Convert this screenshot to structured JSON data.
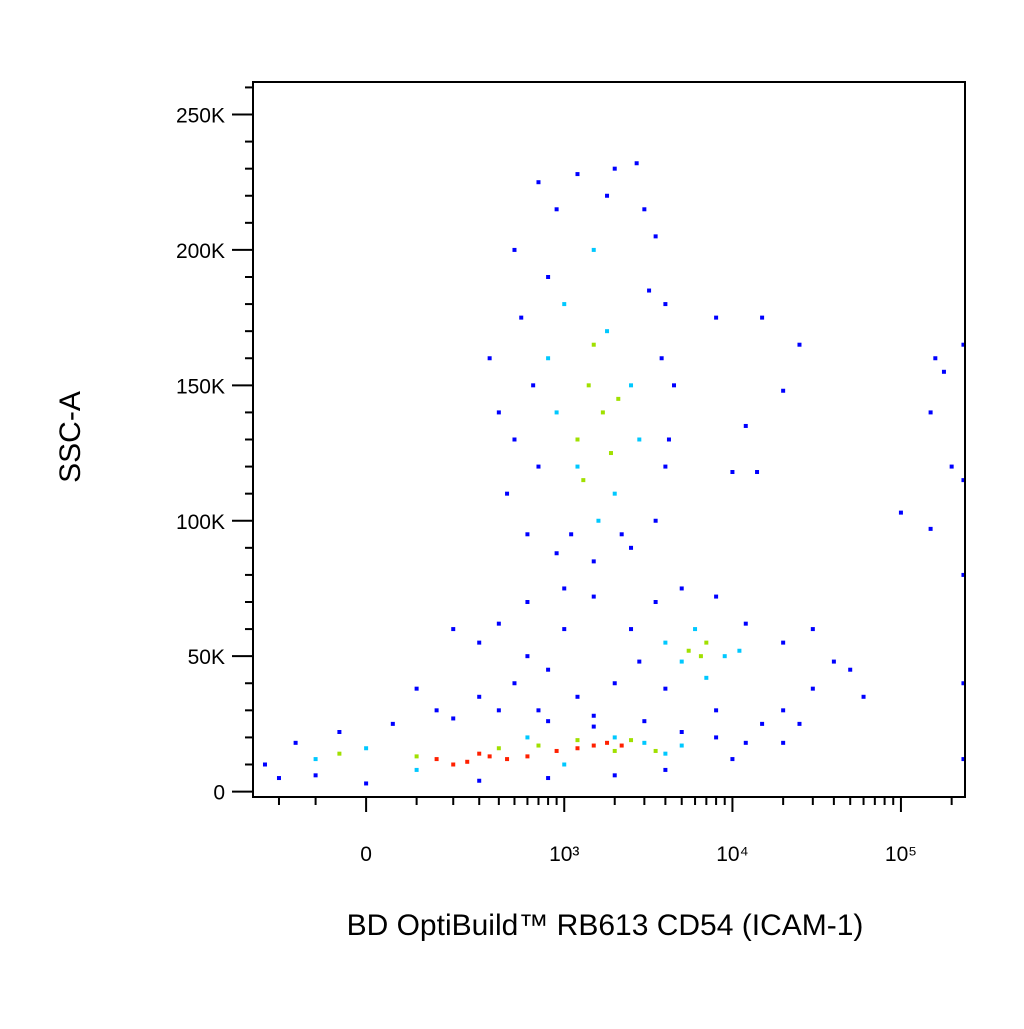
{
  "chart_data": {
    "type": "scatter",
    "xlabel": "BD OptiBuild™ RB613 CD54 (ICAM-1)",
    "ylabel": "SSC-A",
    "xscale": "biexponential",
    "xlim": [
      -300,
      240000
    ],
    "ylim": [
      -2000,
      262000
    ],
    "xticks": [
      0,
      {
        "value": 1000,
        "label": "10³"
      },
      {
        "value": 10000,
        "label": "10⁴"
      },
      {
        "value": 100000,
        "label": "10⁵"
      }
    ],
    "xminorticks": [
      -200,
      -100,
      100,
      200,
      300,
      400,
      500,
      600,
      700,
      800,
      900,
      2000,
      3000,
      4000,
      5000,
      6000,
      7000,
      8000,
      9000,
      20000,
      30000,
      40000,
      50000,
      60000,
      70000,
      80000,
      90000,
      200000
    ],
    "yticks": [
      0,
      {
        "value": 50000,
        "label": "50K"
      },
      {
        "value": 100000,
        "label": "100K"
      },
      {
        "value": 150000,
        "label": "150K"
      },
      {
        "value": 200000,
        "label": "200K"
      },
      {
        "value": 250000,
        "label": "250K"
      }
    ],
    "yminorticks": [
      10000,
      20000,
      30000,
      40000,
      60000,
      70000,
      80000,
      90000,
      110000,
      120000,
      130000,
      140000,
      160000,
      170000,
      180000,
      190000,
      210000,
      220000,
      230000,
      240000,
      260000
    ],
    "series": [
      {
        "color": "#0000ff",
        "points": [
          [
            500,
            200000
          ],
          [
            700,
            225000
          ],
          [
            900,
            215000
          ],
          [
            1200,
            228000
          ],
          [
            2000,
            230000
          ],
          [
            2700,
            232000
          ],
          [
            3500,
            205000
          ],
          [
            4000,
            180000
          ],
          [
            4500,
            150000
          ],
          [
            4000,
            120000
          ],
          [
            3500,
            100000
          ],
          [
            2500,
            90000
          ],
          [
            1500,
            85000
          ],
          [
            900,
            88000
          ],
          [
            600,
            95000
          ],
          [
            450,
            110000
          ],
          [
            400,
            140000
          ],
          [
            350,
            160000
          ],
          [
            550,
            175000
          ],
          [
            800,
            190000
          ],
          [
            1800,
            220000
          ],
          [
            3000,
            215000
          ],
          [
            3800,
            160000
          ],
          [
            4200,
            130000
          ],
          [
            2200,
            95000
          ],
          [
            1100,
            95000
          ],
          [
            700,
            120000
          ],
          [
            500,
            130000
          ],
          [
            650,
            150000
          ],
          [
            3200,
            185000
          ],
          [
            8000,
            175000
          ],
          [
            15000,
            175000
          ],
          [
            25000,
            165000
          ],
          [
            20000,
            148000
          ],
          [
            12000,
            135000
          ],
          [
            10000,
            118000
          ],
          [
            14000,
            118000
          ],
          [
            160000,
            160000
          ],
          [
            150000,
            140000
          ],
          [
            180000,
            155000
          ],
          [
            100000,
            103000
          ],
          [
            150000,
            97000
          ],
          [
            200000,
            120000
          ],
          [
            235000,
            165000
          ],
          [
            235000,
            115000
          ],
          [
            235000,
            80000
          ],
          [
            235000,
            40000
          ],
          [
            235000,
            12000
          ],
          [
            2500,
            60000
          ],
          [
            3500,
            70000
          ],
          [
            5000,
            75000
          ],
          [
            8000,
            72000
          ],
          [
            12000,
            62000
          ],
          [
            20000,
            55000
          ],
          [
            30000,
            60000
          ],
          [
            40000,
            48000
          ],
          [
            50000,
            45000
          ],
          [
            30000,
            38000
          ],
          [
            20000,
            30000
          ],
          [
            15000,
            25000
          ],
          [
            8000,
            30000
          ],
          [
            4000,
            38000
          ],
          [
            2800,
            48000
          ],
          [
            60000,
            35000
          ],
          [
            25000,
            25000
          ],
          [
            200,
            60000
          ],
          [
            300,
            55000
          ],
          [
            400,
            62000
          ],
          [
            600,
            50000
          ],
          [
            800,
            45000
          ],
          [
            1000,
            60000
          ],
          [
            500,
            40000
          ],
          [
            300,
            35000
          ],
          [
            150,
            30000
          ],
          [
            100,
            38000
          ],
          [
            700,
            30000
          ],
          [
            1200,
            35000
          ],
          [
            1500,
            28000
          ],
          [
            2000,
            40000
          ],
          [
            1000,
            75000
          ],
          [
            1500,
            72000
          ],
          [
            600,
            70000
          ],
          [
            -250,
            10000
          ],
          [
            -200,
            5000
          ],
          [
            -150,
            18000
          ],
          [
            -50,
            22000
          ],
          [
            50,
            25000
          ],
          [
            200,
            27000
          ],
          [
            400,
            30000
          ],
          [
            800,
            26000
          ],
          [
            1500,
            24000
          ],
          [
            3000,
            26000
          ],
          [
            5000,
            22000
          ],
          [
            8000,
            20000
          ],
          [
            12000,
            18000
          ],
          [
            20000,
            18000
          ],
          [
            4000,
            8000
          ],
          [
            2000,
            6000
          ],
          [
            800,
            5000
          ],
          [
            300,
            4000
          ],
          [
            0,
            3000
          ],
          [
            -100,
            6000
          ],
          [
            10000,
            12000
          ]
        ]
      },
      {
        "color": "#00c8ff",
        "points": [
          [
            1000,
            180000
          ],
          [
            1500,
            200000
          ],
          [
            1800,
            170000
          ],
          [
            2500,
            150000
          ],
          [
            900,
            140000
          ],
          [
            1200,
            120000
          ],
          [
            2000,
            110000
          ],
          [
            1600,
            100000
          ],
          [
            800,
            160000
          ],
          [
            2800,
            130000
          ],
          [
            4000,
            55000
          ],
          [
            6000,
            60000
          ],
          [
            9000,
            50000
          ],
          [
            7000,
            42000
          ],
          [
            5000,
            48000
          ],
          [
            11000,
            52000
          ],
          [
            -100,
            12000
          ],
          [
            0,
            16000
          ],
          [
            100,
            8000
          ],
          [
            2000,
            20000
          ],
          [
            3000,
            18000
          ],
          [
            4000,
            14000
          ],
          [
            600,
            20000
          ],
          [
            1000,
            10000
          ],
          [
            5000,
            17000
          ]
        ]
      },
      {
        "color": "#a0e000",
        "points": [
          [
            1400,
            150000
          ],
          [
            1700,
            140000
          ],
          [
            1200,
            130000
          ],
          [
            1900,
            125000
          ],
          [
            1500,
            165000
          ],
          [
            1300,
            115000
          ],
          [
            2100,
            145000
          ],
          [
            5500,
            52000
          ],
          [
            6500,
            50000
          ],
          [
            7000,
            55000
          ],
          [
            -50,
            14000
          ],
          [
            100,
            13000
          ],
          [
            2000,
            15000
          ],
          [
            2500,
            19000
          ],
          [
            700,
            17000
          ],
          [
            400,
            16000
          ],
          [
            1200,
            19000
          ],
          [
            3500,
            15000
          ]
        ]
      },
      {
        "color": "#ff2000",
        "points": [
          [
            150,
            12000
          ],
          [
            250,
            11000
          ],
          [
            350,
            13000
          ],
          [
            450,
            12000
          ],
          [
            300,
            14000
          ],
          [
            200,
            10000
          ],
          [
            1200,
            16000
          ],
          [
            1500,
            17000
          ],
          [
            1800,
            18000
          ],
          [
            2200,
            17000
          ],
          [
            900,
            15000
          ],
          [
            600,
            13000
          ]
        ]
      }
    ]
  }
}
